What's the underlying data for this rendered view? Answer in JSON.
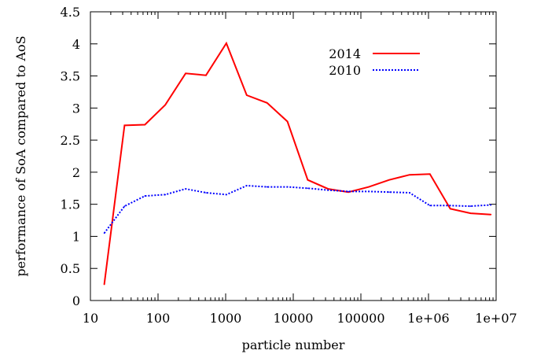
{
  "chart_data": {
    "type": "line",
    "xlabel": "particle number",
    "ylabel": "performance of SoA compared to AoS",
    "x_scale": "log",
    "xlim": [
      10,
      10000000
    ],
    "ylim": [
      0,
      4.5
    ],
    "x_ticks": [
      {
        "value": 10,
        "label": "10"
      },
      {
        "value": 100,
        "label": "100"
      },
      {
        "value": 1000,
        "label": "1000"
      },
      {
        "value": 10000,
        "label": "10000"
      },
      {
        "value": 100000,
        "label": "100000"
      },
      {
        "value": 1000000,
        "label": "1e+06"
      },
      {
        "value": 10000000,
        "label": "1e+07"
      }
    ],
    "y_ticks": [
      {
        "value": 0,
        "label": "0"
      },
      {
        "value": 0.5,
        "label": "0.5"
      },
      {
        "value": 1,
        "label": "1"
      },
      {
        "value": 1.5,
        "label": "1.5"
      },
      {
        "value": 2,
        "label": "2"
      },
      {
        "value": 2.5,
        "label": "2.5"
      },
      {
        "value": 3,
        "label": "3"
      },
      {
        "value": 3.5,
        "label": "3.5"
      },
      {
        "value": 4,
        "label": "4"
      },
      {
        "value": 4.5,
        "label": "4.5"
      }
    ],
    "grid": false,
    "legend_position": "top-right",
    "series": [
      {
        "name": "2014",
        "color": "#ff0000",
        "style": "solid",
        "points": [
          [
            16,
            0.25
          ],
          [
            32,
            2.73
          ],
          [
            64,
            2.74
          ],
          [
            128,
            3.05
          ],
          [
            256,
            3.54
          ],
          [
            512,
            3.51
          ],
          [
            1024,
            4.01
          ],
          [
            2048,
            3.2
          ],
          [
            4096,
            3.08
          ],
          [
            8192,
            2.79
          ],
          [
            16384,
            1.88
          ],
          [
            32768,
            1.74
          ],
          [
            65536,
            1.69
          ],
          [
            131072,
            1.77
          ],
          [
            262144,
            1.88
          ],
          [
            524288,
            1.96
          ],
          [
            1048576,
            1.97
          ],
          [
            2097152,
            1.43
          ],
          [
            4194304,
            1.36
          ],
          [
            8388608,
            1.34
          ]
        ]
      },
      {
        "name": "2010",
        "color": "#0000ff",
        "style": "dotted",
        "points": [
          [
            16,
            1.05
          ],
          [
            32,
            1.47
          ],
          [
            64,
            1.63
          ],
          [
            128,
            1.65
          ],
          [
            256,
            1.74
          ],
          [
            512,
            1.68
          ],
          [
            1024,
            1.65
          ],
          [
            2048,
            1.79
          ],
          [
            4096,
            1.77
          ],
          [
            8192,
            1.77
          ],
          [
            16384,
            1.75
          ],
          [
            32768,
            1.72
          ],
          [
            65536,
            1.7
          ],
          [
            131072,
            1.7
          ],
          [
            262144,
            1.69
          ],
          [
            524288,
            1.68
          ],
          [
            1048576,
            1.48
          ],
          [
            2097152,
            1.48
          ],
          [
            4194304,
            1.47
          ],
          [
            8388608,
            1.49
          ]
        ]
      }
    ]
  }
}
